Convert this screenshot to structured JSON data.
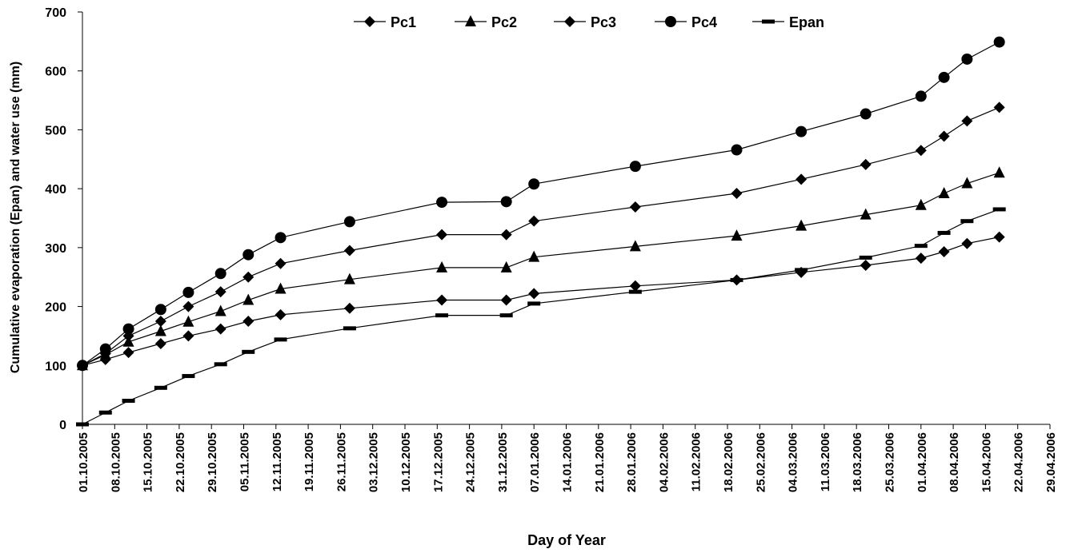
{
  "chart_data": {
    "type": "line",
    "title": "",
    "xlabel": "Day of Year",
    "ylabel": "Cumulative evaporation  (Epan) and water use (mm)",
    "ylim": [
      0,
      700
    ],
    "yticks": [
      0,
      100,
      200,
      300,
      400,
      500,
      600,
      700
    ],
    "xlim": [
      "2005-10-01",
      "2006-04-29"
    ],
    "xtick_labels": [
      "01.10.2005",
      "08.10.2005",
      "15.10.2005",
      "22.10.2005",
      "29.10.2005",
      "05.11.2005",
      "12.11.2005",
      "19.11.2005",
      "26.11.2005",
      "03.12.2005",
      "10.12.2005",
      "17.12.2005",
      "24.12.2005",
      "31.12.2005",
      "07.01.2006",
      "14.01.2006",
      "21.01.2006",
      "28.01.2006",
      "04.02.2006",
      "11.02.2006",
      "18.02.2006",
      "25.02.2006",
      "04.03.2006",
      "11.03.2006",
      "18.03.2006",
      "25.03.2006",
      "01.04.2006",
      "08.04.2006",
      "15.04.2006",
      "22.04.2006",
      "29.04.2006"
    ],
    "grid": false,
    "legend_position": "top-center",
    "x": [
      "2005-10-01",
      "2005-10-06",
      "2005-10-11",
      "2005-10-18",
      "2005-10-24",
      "2005-10-31",
      "2005-11-06",
      "2005-11-13",
      "2005-11-28",
      "2005-12-18",
      "2006-01-01",
      "2006-01-07",
      "2006-01-29",
      "2006-02-20",
      "2006-03-06",
      "2006-03-20",
      "2006-04-01",
      "2006-04-06",
      "2006-04-11",
      "2006-04-18"
    ],
    "series": [
      {
        "name": "Pc1",
        "marker": "diamond",
        "values": [
          100,
          110,
          122,
          137,
          150,
          162,
          175,
          186,
          197,
          211,
          211,
          222,
          235,
          245,
          258,
          270,
          282,
          293,
          307,
          318
        ]
      },
      {
        "name": "Pc2",
        "marker": "triangle",
        "values": [
          100,
          118,
          140,
          158,
          174,
          192,
          211,
          230,
          246,
          266,
          266,
          284,
          302,
          320,
          337,
          356,
          372,
          392,
          409,
          427
        ]
      },
      {
        "name": "Pc3",
        "marker": "diamond",
        "values": [
          100,
          120,
          150,
          175,
          200,
          225,
          250,
          273,
          295,
          322,
          322,
          345,
          369,
          392,
          416,
          441,
          465,
          489,
          515,
          538
        ]
      },
      {
        "name": "Pc4",
        "marker": "circle",
        "values": [
          100,
          128,
          162,
          195,
          224,
          256,
          288,
          317,
          344,
          377,
          378,
          408,
          438,
          466,
          497,
          527,
          557,
          589,
          620,
          649
        ]
      },
      {
        "name": "Epan",
        "marker": "dash",
        "values": [
          0,
          20,
          40,
          62,
          82,
          102,
          123,
          144,
          163,
          185,
          185,
          205,
          225,
          245,
          262,
          283,
          303,
          325,
          345,
          365
        ]
      }
    ]
  }
}
